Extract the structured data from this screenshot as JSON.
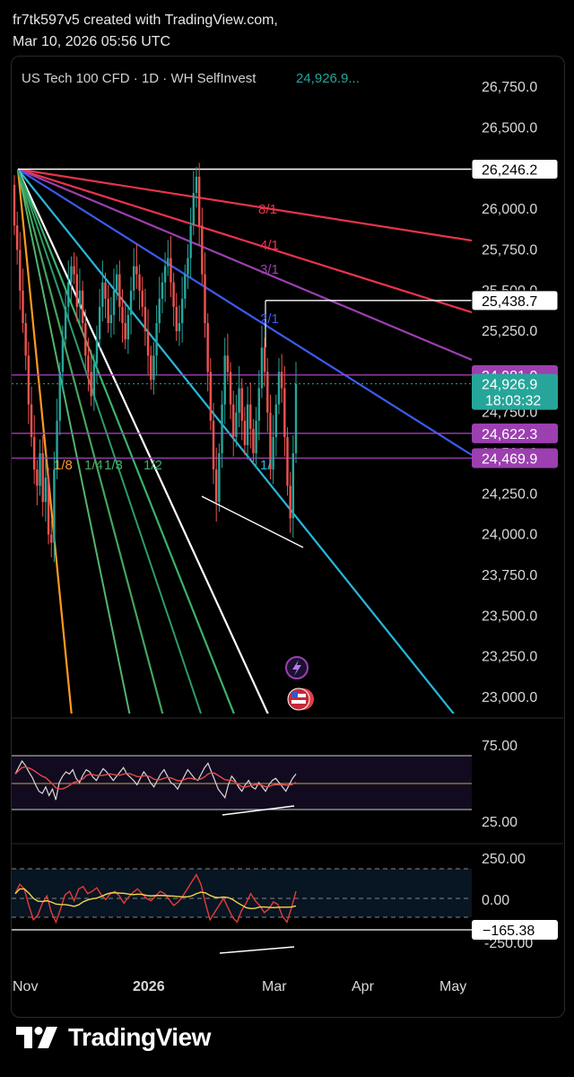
{
  "header": {
    "line1": "fr7tk597v5 created with TradingView.com,",
    "line2": "Mar 10, 2026 05:56 UTC"
  },
  "brand": {
    "name": "TradingView"
  },
  "chart_data": {
    "type": "candlestick",
    "title": "US Tech 100 CFD · 1D · WH SelfInvest",
    "title_price": "24,926.9...",
    "y_axis": {
      "ticks": [
        "26,750.0",
        "26,500.0",
        "26,250.0",
        "26,000.0",
        "25,750.0",
        "25,500.0",
        "25,250.0",
        "24,750.0",
        "24,500.0",
        "24,250.0",
        "24,000.0",
        "23,750.0",
        "23,500.0",
        "23,250.0",
        "23,000.0"
      ],
      "range": [
        22900,
        26900
      ]
    },
    "x_axis": {
      "ticks": [
        "Nov",
        "2026",
        "Mar",
        "Apr",
        "May"
      ]
    },
    "price_tags": [
      {
        "value": 26246.2,
        "label": "26,246.2",
        "style": "white"
      },
      {
        "value": 25438.7,
        "label": "25,438.7",
        "style": "white"
      },
      {
        "value": 24981.0,
        "label": "24,981.0",
        "style": "purple"
      },
      {
        "value": 24926.9,
        "label": "24,926.9",
        "sub": "18:03:32",
        "style": "green"
      },
      {
        "value": 24622.3,
        "label": "24,622.3",
        "style": "purple"
      },
      {
        "value": 24469.9,
        "label": "24,469.9",
        "style": "purple"
      }
    ],
    "gann_fan": {
      "origin_price": 26246.2,
      "labels_upper": [
        "8/1",
        "4/1",
        "3/1",
        "2/1"
      ],
      "labels_lower": [
        "1/8",
        "1/4",
        "1/3",
        "1/2",
        "1/"
      ],
      "colors": {
        "8/1": "#e8344a",
        "4/1": "#ef3350",
        "3/1": "#9c3fb0",
        "2/1": "#3b5bf0",
        "1/1": "#28b8dc",
        "1/2": "#ffffff",
        "1/3": "#3bb26b",
        "1/4": "#47a35c",
        "1/8": "#ff9a1f"
      }
    },
    "horizontal_levels": [
      24981.0,
      24622.3,
      24469.9
    ],
    "rsi_panel": {
      "ticks": [
        "75.00",
        "25.00"
      ],
      "range": [
        0,
        100
      ]
    },
    "cci_panel": {
      "ticks": [
        "250.00",
        "0.00",
        "-250.00"
      ],
      "current_label": "−165.38",
      "range": [
        -300,
        300
      ]
    },
    "colors": {
      "up": "#26a69a",
      "down": "#ef5350",
      "background": "#000000"
    }
  }
}
